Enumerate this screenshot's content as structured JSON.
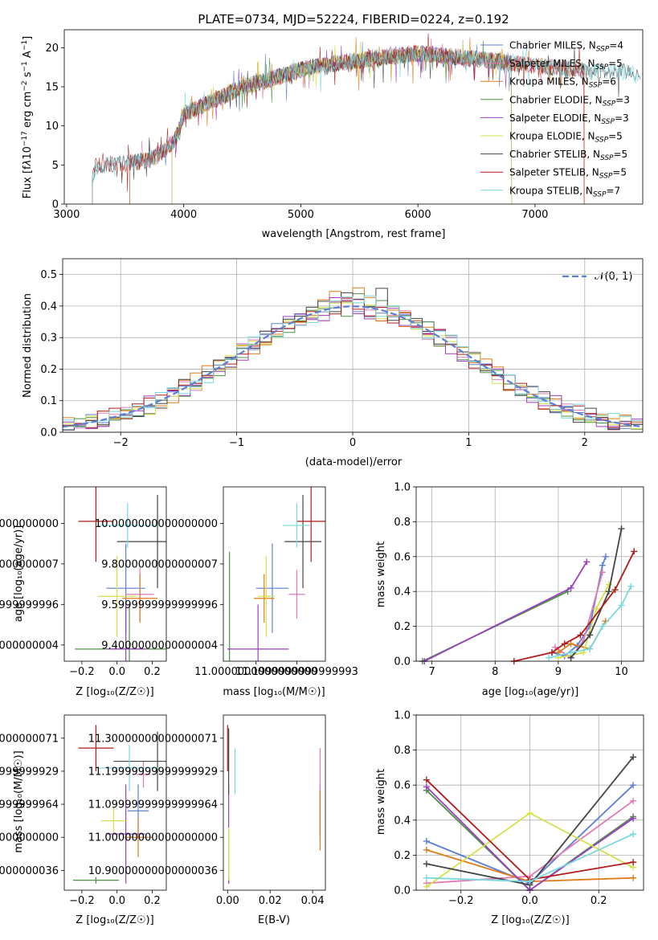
{
  "chart_data": [
    {
      "id": "spectrum",
      "type": "line",
      "title": "PLATE=0734, MJD=52224, FIBERID=0224, z=0.192",
      "xlabel": "wavelength [Angstrom, rest frame]",
      "ylabel": "Flux [fλ10⁻¹⁷ erg cm⁻² s⁻¹ A⁻¹]",
      "xlim": [
        2980,
        7920
      ],
      "ylim": [
        0,
        22.3
      ],
      "xticks": [
        3000,
        4000,
        5000,
        6000,
        7000
      ],
      "yticks": [
        0,
        5,
        10,
        15,
        20
      ],
      "legend_position": "top-right",
      "spectrum_anchor_x": [
        3220,
        3250,
        3400,
        3600,
        3700,
        3800,
        3900,
        3950,
        4000,
        4150,
        4300,
        4500,
        4700,
        4900,
        5000,
        5200,
        5400,
        5600,
        5800,
        6000,
        6200,
        6400,
        6600,
        6800,
        7000,
        7200,
        7400,
        7900
      ],
      "spectrum_anchor_y": [
        3.5,
        4.8,
        5.2,
        5.4,
        5.6,
        6.5,
        7.8,
        9.0,
        11.5,
        12.5,
        13.5,
        15.0,
        15.8,
        16.8,
        17.2,
        17.8,
        18.2,
        18.6,
        18.9,
        19.3,
        19.0,
        18.7,
        18.4,
        18.0,
        17.7,
        17.4,
        17.1,
        16.8
      ],
      "series": [
        {
          "name": "Chabrier MILES",
          "nssp": "4",
          "color": "#5b7fd8",
          "xmin": 3540,
          "xmax": 6800
        },
        {
          "name": "Salpeter MILES",
          "nssp": "5",
          "color": "#e27ab6",
          "xmin": 3540,
          "xmax": 7420
        },
        {
          "name": "Kroupa MILES",
          "nssp": "6",
          "color": "#e07b1a",
          "xmin": 3540,
          "xmax": 7420
        },
        {
          "name": "Chabrier ELODIE",
          "nssp": "3",
          "color": "#4f9146",
          "xmin": 3900,
          "xmax": 6800
        },
        {
          "name": "Salpeter ELODIE",
          "nssp": "3",
          "color": "#9a3fc1",
          "xmin": 3900,
          "xmax": 6800
        },
        {
          "name": "Kroupa ELODIE",
          "nssp": "5",
          "color": "#d6e04a",
          "xmin": 3900,
          "xmax": 6800
        },
        {
          "name": "Chabrier STELIB",
          "nssp": "5",
          "color": "#444444",
          "xmin": 3220,
          "xmax": 7900
        },
        {
          "name": "Salpeter STELIB",
          "nssp": "5",
          "color": "#b01c1c",
          "xmin": 3220,
          "xmax": 7420
        },
        {
          "name": "Kroupa STELIB",
          "nssp": "7",
          "color": "#7ad8e0",
          "xmin": 3220,
          "xmax": 7900
        }
      ]
    },
    {
      "id": "residuals",
      "type": "bar",
      "xlabel": "(data-model)/error",
      "ylabel": "Normed distribution",
      "xlim": [
        -2.5,
        2.5
      ],
      "ylim": [
        0,
        0.55
      ],
      "xticks": [
        -2,
        -1,
        0,
        1,
        2
      ],
      "yticks": [
        0.0,
        0.1,
        0.2,
        0.3,
        0.4,
        0.5
      ],
      "grid": true,
      "legend_position": "top-right",
      "legend": "𝒩(0, 1)",
      "reference_curve": {
        "name": "N(0,1)",
        "mean": 0,
        "sigma": 1,
        "color": "#5b7fd8"
      },
      "bin_start": -2.5,
      "bin_width": 0.1
    },
    {
      "id": "age-vs-Z",
      "type": "scatter",
      "xlabel": "Z [log₁₀(Z/Z☉)]",
      "ylabel": "age  [log₁₀(age/yr)]",
      "xlim": [
        -0.3,
        0.28
      ],
      "ylim": [
        9.32,
        10.18
      ],
      "xticks": [
        -0.2,
        0.0,
        0.2
      ],
      "yticks": [
        9.4,
        9.6,
        9.8,
        10.0
      ],
      "points": [
        {
          "x": 0.05,
          "xerr": 0.11,
          "y": 9.68,
          "yerr": 0.22,
          "color": "#5b7fd8"
        },
        {
          "x": 0.13,
          "xerr": 0.08,
          "y": 9.65,
          "yerr": 0.13,
          "color": "#e27ab6"
        },
        {
          "x": 0.13,
          "xerr": 0.1,
          "y": 9.63,
          "yerr": 0.12,
          "color": "#e07b1a"
        },
        {
          "x": 0.07,
          "xerr": 0.31,
          "y": 9.38,
          "yerr": 0.22,
          "color": "#4f9146"
        },
        {
          "x": 0.05,
          "xerr": 0.11,
          "y": 9.38,
          "yerr": 0.22,
          "color": "#9a3fc1"
        },
        {
          "x": 0.0,
          "xerr": 0.11,
          "y": 9.64,
          "yerr": 0.2,
          "color": "#d6e04a"
        },
        {
          "x": 0.23,
          "xerr": 0.23,
          "y": 9.91,
          "yerr": 0.23,
          "color": "#444444"
        },
        {
          "x": -0.12,
          "xerr": 0.1,
          "y": 10.01,
          "yerr": 0.2,
          "color": "#b01c1c"
        },
        {
          "x": 0.06,
          "xerr": 0.17,
          "y": 9.99,
          "yerr": 0.11,
          "color": "#7ad8e0"
        }
      ]
    },
    {
      "id": "age-vs-mass",
      "type": "scatter",
      "xlabel": "mass [log₁₀(M/M☉)]",
      "ylabel": "",
      "xlim": [
        10.84,
        11.34
      ],
      "ylim": [
        9.32,
        10.18
      ],
      "xticks": [
        11.0,
        11.2
      ],
      "yticks": [
        9.4,
        9.6,
        9.8,
        10.0
      ],
      "points": [
        {
          "x": 11.08,
          "xerr": 0.08,
          "y": 9.68,
          "yerr": 0.22,
          "color": "#5b7fd8"
        },
        {
          "x": 11.2,
          "xerr": 0.04,
          "y": 9.65,
          "yerr": 0.12,
          "color": "#e27ab6"
        },
        {
          "x": 11.04,
          "xerr": 0.05,
          "y": 9.63,
          "yerr": 0.12,
          "color": "#e07b1a"
        },
        {
          "x": 10.87,
          "xerr": 0.01,
          "y": 9.38,
          "yerr": 0.48,
          "color": "#4f9146"
        },
        {
          "x": 11.01,
          "xerr": 0.15,
          "y": 9.38,
          "yerr": 0.22,
          "color": "#9a3fc1"
        },
        {
          "x": 11.05,
          "xerr": 0.04,
          "y": 9.64,
          "yerr": 0.2,
          "color": "#d6e04a"
        },
        {
          "x": 11.23,
          "xerr": 0.09,
          "y": 9.91,
          "yerr": 0.23,
          "color": "#444444"
        },
        {
          "x": 11.27,
          "xerr": 0.07,
          "y": 10.01,
          "yerr": 0.2,
          "color": "#b01c1c"
        },
        {
          "x": 11.2,
          "xerr": 0.07,
          "y": 9.99,
          "yerr": 0.11,
          "color": "#7ad8e0"
        }
      ]
    },
    {
      "id": "mass-weight-vs-age",
      "type": "line",
      "xlabel": "age  [log₁₀(age/yr)]",
      "ylabel": "mass weight",
      "xlim": [
        6.75,
        10.35
      ],
      "ylim": [
        0,
        1.0
      ],
      "xticks": [
        7,
        8,
        9,
        10
      ],
      "yticks": [
        0.0,
        0.2,
        0.4,
        0.6,
        0.8,
        1.0
      ],
      "grid": true,
      "series": [
        {
          "color": "#5b7fd8",
          "x": [
            8.9,
            9.1,
            9.3,
            9.5,
            9.7,
            9.75
          ],
          "y": [
            0.05,
            0.03,
            0.09,
            0.2,
            0.55,
            0.6
          ]
        },
        {
          "color": "#e27ab6",
          "x": [
            8.95,
            9.2,
            9.4,
            9.7
          ],
          "y": [
            0.08,
            0.02,
            0.12,
            0.51
          ]
        },
        {
          "color": "#e07b1a",
          "x": [
            9.0,
            9.2,
            9.5,
            9.75
          ],
          "y": [
            0.05,
            0.1,
            0.07,
            0.23
          ]
        },
        {
          "color": "#4f9146",
          "x": [
            6.85,
            9.15
          ],
          "y": [
            0.0,
            0.4
          ]
        },
        {
          "color": "#9a3fc1",
          "x": [
            6.88,
            9.2,
            9.45
          ],
          "y": [
            0.0,
            0.42,
            0.57
          ]
        },
        {
          "color": "#d6e04a",
          "x": [
            9.0,
            9.4,
            9.6,
            9.8
          ],
          "y": [
            0.02,
            0.05,
            0.3,
            0.44
          ]
        },
        {
          "color": "#444444",
          "x": [
            9.2,
            9.5,
            9.8,
            10.0
          ],
          "y": [
            0.02,
            0.15,
            0.4,
            0.76
          ]
        },
        {
          "color": "#b01c1c",
          "x": [
            8.3,
            8.9,
            9.1,
            9.35,
            9.9,
            10.2
          ],
          "y": [
            0.0,
            0.05,
            0.1,
            0.15,
            0.41,
            0.63
          ]
        },
        {
          "color": "#7ad8e0",
          "x": [
            8.85,
            9.2,
            9.5,
            9.7,
            10.0,
            10.15
          ],
          "y": [
            0.02,
            0.05,
            0.07,
            0.2,
            0.32,
            0.43
          ]
        }
      ]
    },
    {
      "id": "mass-vs-Z",
      "type": "scatter",
      "xlabel": "Z [log₁₀(Z/Z☉)]",
      "ylabel": "mass [log₁₀(M/M☉)]",
      "xlim": [
        -0.3,
        0.28
      ],
      "ylim": [
        10.84,
        11.37
      ],
      "xticks": [
        -0.2,
        0.0,
        0.2
      ],
      "yticks": [
        10.9,
        11.0,
        11.1,
        11.2,
        11.3
      ],
      "points": [
        {
          "x": 0.12,
          "xerr": 0.06,
          "y": 11.08,
          "yerr": 0.08,
          "color": "#5b7fd8"
        },
        {
          "x": 0.15,
          "xerr": 0.04,
          "y": 11.19,
          "yerr": 0.04,
          "color": "#e27ab6"
        },
        {
          "x": 0.12,
          "xerr": 0.08,
          "y": 11.0,
          "yerr": 0.06,
          "color": "#e07b1a"
        },
        {
          "x": -0.12,
          "xerr": 0.13,
          "y": 10.87,
          "yerr": 0.01,
          "color": "#4f9146"
        },
        {
          "x": 0.05,
          "xerr": 0.11,
          "y": 11.01,
          "yerr": 0.15,
          "color": "#9a3fc1"
        },
        {
          "x": -0.02,
          "xerr": 0.07,
          "y": 11.05,
          "yerr": 0.04,
          "color": "#d6e04a"
        },
        {
          "x": 0.23,
          "xerr": 0.25,
          "y": 11.23,
          "yerr": 0.09,
          "color": "#444444"
        },
        {
          "x": -0.12,
          "xerr": 0.1,
          "y": 11.27,
          "yerr": 0.07,
          "color": "#b01c1c"
        },
        {
          "x": 0.07,
          "xerr": 0.18,
          "y": 11.21,
          "yerr": 0.07,
          "color": "#7ad8e0"
        }
      ]
    },
    {
      "id": "mass-vs-EBV",
      "type": "scatter",
      "xlabel": "E(B-V)",
      "ylabel": "",
      "xlim": [
        -0.002,
        0.046
      ],
      "ylim": [
        10.84,
        11.37
      ],
      "xticks": [
        0.0,
        0.02,
        0.04
      ],
      "yticks": [
        10.9,
        11.0,
        11.1,
        11.2,
        11.3
      ],
      "points": [
        {
          "x": 0.0435,
          "xerr": 0.0,
          "y": 11.08,
          "yerr": 0.08,
          "color": "#5b7fd8"
        },
        {
          "x": 0.0435,
          "xerr": 0.0,
          "y": 11.19,
          "yerr": 0.08,
          "color": "#e27ab6"
        },
        {
          "x": 0.0435,
          "xerr": 0.0,
          "y": 11.05,
          "yerr": 0.09,
          "color": "#e07b1a"
        },
        {
          "x": 0.0005,
          "xerr": 0.0,
          "y": 10.87,
          "yerr": 0.01,
          "color": "#4f9146"
        },
        {
          "x": 0.0005,
          "xerr": 0.0,
          "y": 11.01,
          "yerr": 0.15,
          "color": "#9a3fc1"
        },
        {
          "x": 0.0005,
          "xerr": 0.0,
          "y": 10.95,
          "yerr": 0.08,
          "color": "#d6e04a"
        },
        {
          "x": 0.0005,
          "xerr": 0.0,
          "y": 11.23,
          "yerr": 0.1,
          "color": "#444444"
        },
        {
          "x": 0.0,
          "xerr": 0.0,
          "y": 11.27,
          "yerr": 0.07,
          "color": "#b01c1c"
        },
        {
          "x": 0.0035,
          "xerr": 0.0,
          "y": 11.2,
          "yerr": 0.07,
          "color": "#7ad8e0"
        }
      ]
    },
    {
      "id": "mass-weight-vs-Z",
      "type": "line",
      "xlabel": "Z [log₁₀(Z/Z☉)]",
      "ylabel": "mass weight",
      "xlim": [
        -0.33,
        0.33
      ],
      "ylim": [
        0,
        1.0
      ],
      "xticks": [
        -0.2,
        0.0,
        0.2
      ],
      "yticks": [
        0.0,
        0.2,
        0.4,
        0.6,
        0.8,
        1.0
      ],
      "grid": true,
      "series": [
        {
          "color": "#5b7fd8",
          "x": [
            -0.3,
            0.0,
            0.3
          ],
          "y": [
            0.28,
            0.04,
            0.6
          ]
        },
        {
          "color": "#e27ab6",
          "x": [
            -0.3,
            0.0,
            0.3
          ],
          "y": [
            0.04,
            0.08,
            0.51
          ]
        },
        {
          "color": "#e07b1a",
          "x": [
            -0.3,
            0.0,
            0.3
          ],
          "y": [
            0.23,
            0.05,
            0.07
          ]
        },
        {
          "color": "#4f9146",
          "x": [
            -0.3,
            0.0,
            0.3
          ],
          "y": [
            0.57,
            0.0,
            0.42
          ]
        },
        {
          "color": "#9a3fc1",
          "x": [
            -0.3,
            0.0,
            0.3
          ],
          "y": [
            0.59,
            0.0,
            0.41
          ]
        },
        {
          "color": "#d6e04a",
          "x": [
            -0.3,
            0.0,
            0.3
          ],
          "y": [
            0.02,
            0.44,
            0.13
          ]
        },
        {
          "color": "#444444",
          "x": [
            -0.3,
            0.0,
            0.3
          ],
          "y": [
            0.15,
            0.03,
            0.76
          ]
        },
        {
          "color": "#b01c1c",
          "x": [
            -0.3,
            0.0,
            0.3
          ],
          "y": [
            0.63,
            0.06,
            0.16
          ]
        },
        {
          "color": "#7ad8e0",
          "x": [
            -0.3,
            0.0,
            0.3
          ],
          "y": [
            0.07,
            0.05,
            0.32
          ]
        }
      ]
    }
  ]
}
